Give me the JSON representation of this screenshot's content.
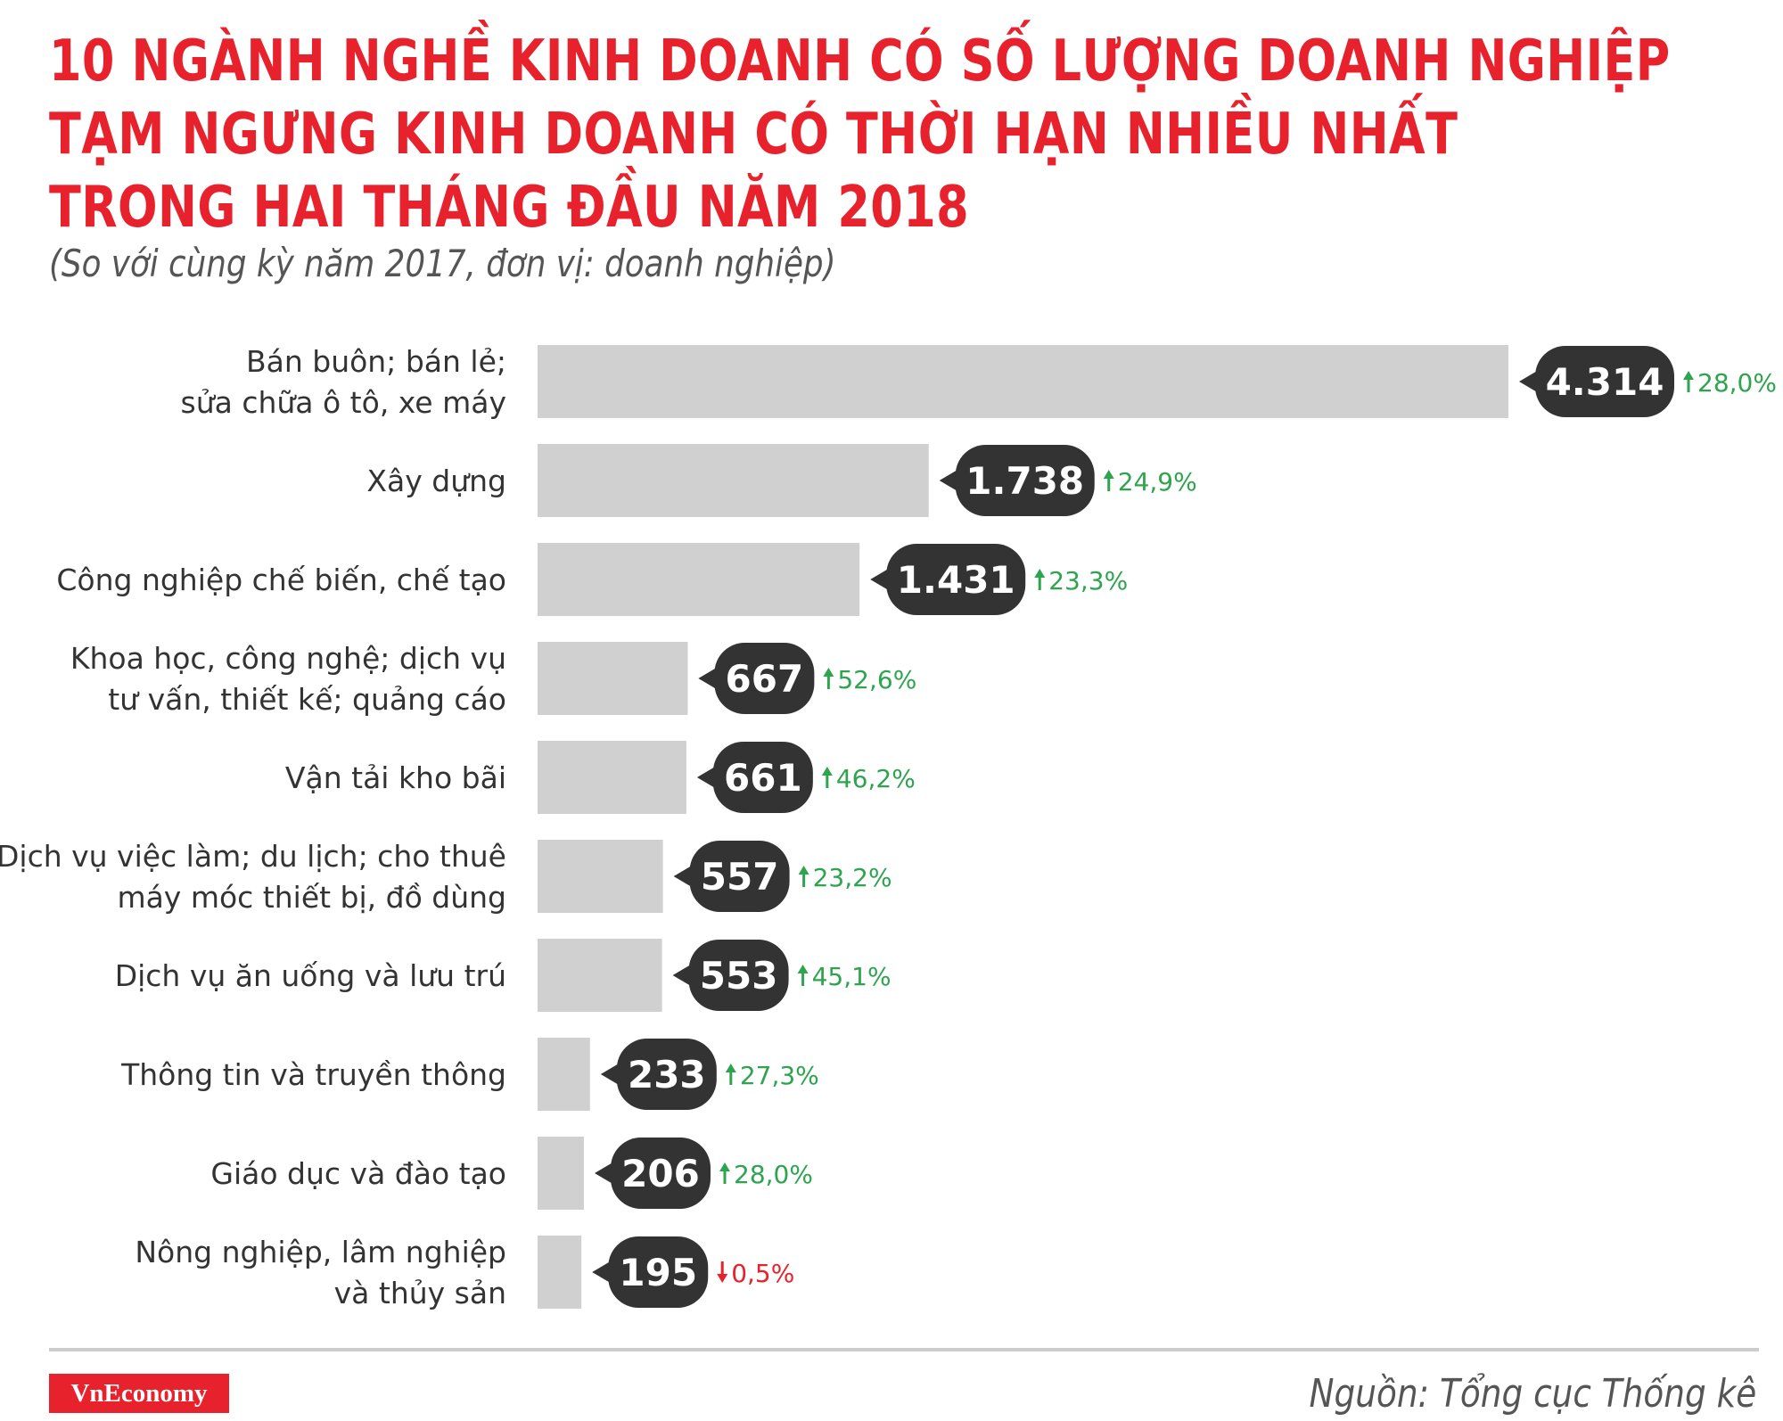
{
  "title_lines": [
    "10 NGÀNH NGHỀ KINH DOANH CÓ SỐ LƯỢNG DOANH NGHIỆP",
    "TẠM NGƯNG KINH DOANH CÓ THỜI HẠN NHIỀU NHẤT",
    "TRONG HAI THÁNG ĐẦU NĂM 2018"
  ],
  "subtitle": "(So với cùng kỳ năm 2017, đơn vị: doanh nghiệp)",
  "source": "Nguồn: Tổng cục Thống kê",
  "brand": "VnEconomy",
  "colors": {
    "title": "#e8222c",
    "bar": "#d0d0d0",
    "value_badge": "#333333",
    "increase": "#2ea44f",
    "decrease": "#e8222c"
  },
  "chart_data": {
    "type": "bar",
    "orientation": "horizontal",
    "categories": [
      [
        "Bán buôn; bán lẻ;",
        "sửa chữa ô tô, xe máy"
      ],
      [
        "Xây dựng"
      ],
      [
        "Công nghiệp chế biến, chế tạo"
      ],
      [
        "Khoa học, công nghệ; dịch vụ",
        "tư vấn, thiết kế; quảng cáo"
      ],
      [
        "Vận tải kho bãi"
      ],
      [
        "Dịch vụ việc làm; du lịch; cho thuê",
        "máy móc thiết bị, đồ dùng"
      ],
      [
        "Dịch vụ ăn uống và lưu trú"
      ],
      [
        "Thông tin và truyền thông"
      ],
      [
        "Giáo dục và đào tạo"
      ],
      [
        "Nông nghiệp, lâm nghiệp",
        "và thủy sản"
      ]
    ],
    "values": [
      4314,
      1738,
      1431,
      667,
      661,
      557,
      553,
      233,
      206,
      195
    ],
    "value_labels": [
      "4.314",
      "1.738",
      "1.431",
      "667",
      "661",
      "557",
      "553",
      "233",
      "206",
      "195"
    ],
    "changes": [
      {
        "text": "28,0%",
        "direction": "up"
      },
      {
        "text": "24,9%",
        "direction": "up"
      },
      {
        "text": "23,3%",
        "direction": "up"
      },
      {
        "text": "52,6%",
        "direction": "up"
      },
      {
        "text": "46,2%",
        "direction": "up"
      },
      {
        "text": "23,2%",
        "direction": "up"
      },
      {
        "text": "45,1%",
        "direction": "up"
      },
      {
        "text": "27,3%",
        "direction": "up"
      },
      {
        "text": "28,0%",
        "direction": "up"
      },
      {
        "text": "0,5%",
        "direction": "down"
      }
    ]
  }
}
